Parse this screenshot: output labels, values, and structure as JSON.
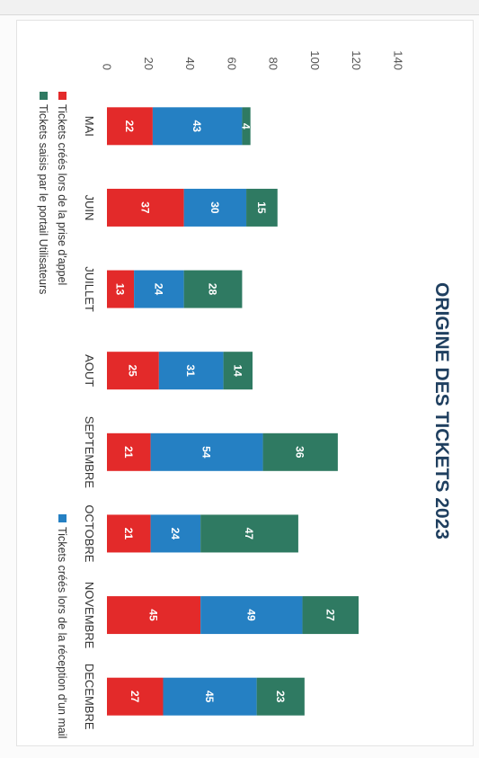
{
  "chart_data": {
    "type": "bar",
    "stacked": true,
    "orientation": "vertical",
    "title": "ORIGINE DES TICKETS 2023",
    "xlabel": "",
    "ylabel": "",
    "categories": [
      "MAI",
      "JUIN",
      "JUILLET",
      "AOUT",
      "SEPTEMBRE",
      "OCTOBRE",
      "NOVEMBRE",
      "DECEMBRE"
    ],
    "ylim": [
      0,
      140
    ],
    "yticks": [
      0,
      20,
      40,
      60,
      80,
      100,
      120,
      140
    ],
    "grid": false,
    "legend_position": "bottom",
    "data_labels": true,
    "series": [
      {
        "name": "Tickets créés lors de la prise d'appel",
        "color": "#e32a2a",
        "values": [
          22,
          37,
          13,
          25,
          21,
          21,
          45,
          27
        ]
      },
      {
        "name": "Tickets créés lors de la réception d'un mail",
        "color": "#2580c3",
        "values": [
          43,
          30,
          24,
          31,
          54,
          24,
          49,
          45
        ]
      },
      {
        "name": "Tickets saisis par le portail Utilisateurs",
        "color": "#2f7a62",
        "values": [
          4,
          15,
          28,
          14,
          36,
          47,
          27,
          23
        ]
      }
    ]
  }
}
